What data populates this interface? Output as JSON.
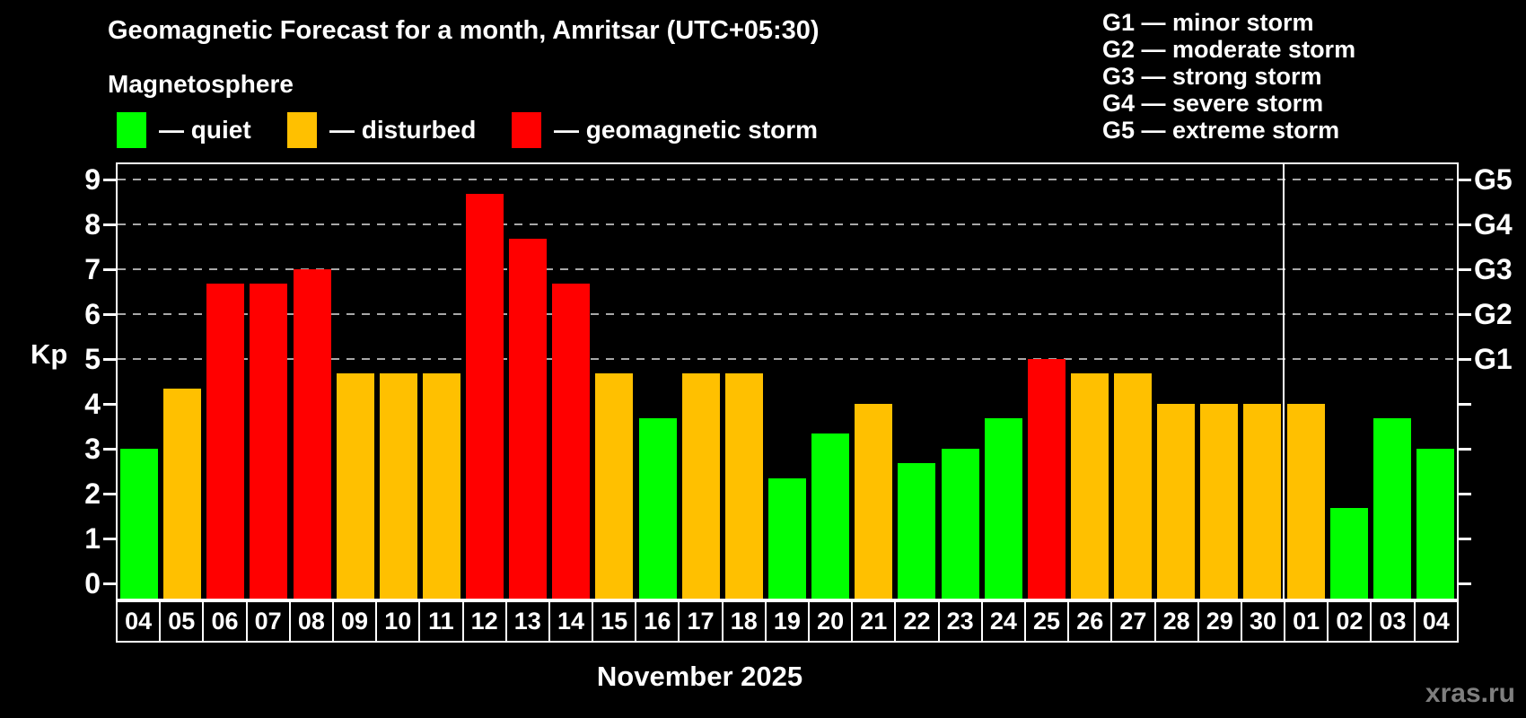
{
  "title": "Geomagnetic Forecast for a month, Amritsar (UTC+05:30)",
  "subtitle": "Magnetosphere",
  "legend": {
    "items": [
      {
        "key": "quiet",
        "label": "— quiet",
        "color": "#00ff00"
      },
      {
        "key": "disturbed",
        "label": "— disturbed",
        "color": "#ffc000"
      },
      {
        "key": "storm",
        "label": "— geomagnetic storm",
        "color": "#ff0000"
      }
    ]
  },
  "g_scale_legend": {
    "lines": [
      "G1 — minor storm",
      "G2 — moderate storm",
      "G3 — strong storm",
      "G4 — severe storm",
      "G5 — extreme storm"
    ]
  },
  "axes": {
    "y_label": "Kp",
    "y_ticks": [
      0,
      1,
      2,
      3,
      4,
      5,
      6,
      7,
      8,
      9
    ],
    "right_labels": [
      {
        "label": "G1",
        "kp": 5
      },
      {
        "label": "G2",
        "kp": 6
      },
      {
        "label": "G3",
        "kp": 7
      },
      {
        "label": "G4",
        "kp": 8
      },
      {
        "label": "G5",
        "kp": 9
      }
    ]
  },
  "x_caption": "November 2025",
  "watermark": "xras.ru",
  "chart_data": {
    "type": "bar",
    "title": "Geomagnetic Forecast for a month, Amritsar (UTC+05:30)",
    "xlabel": "November 2025",
    "ylabel": "Kp",
    "ylim": [
      0,
      9.4
    ],
    "grid": "dashed horizontal lines at Kp 5,6,7,8,9 only",
    "gridlines_at": [
      5,
      6,
      7,
      8,
      9
    ],
    "legend_position": "top-left",
    "categories": [
      "04",
      "05",
      "06",
      "07",
      "08",
      "09",
      "10",
      "11",
      "12",
      "13",
      "14",
      "15",
      "16",
      "17",
      "18",
      "19",
      "20",
      "21",
      "22",
      "23",
      "24",
      "25",
      "26",
      "27",
      "28",
      "29",
      "30",
      "01",
      "02",
      "03",
      "04"
    ],
    "values": [
      3,
      4.33,
      6.67,
      6.67,
      7,
      4.67,
      4.67,
      4.67,
      8.67,
      7.67,
      6.67,
      4.67,
      3.67,
      4.67,
      4.67,
      2.33,
      3.33,
      4,
      2.67,
      3,
      3.67,
      5,
      4.67,
      4.67,
      4,
      4,
      4,
      4,
      1.67,
      3.67,
      3
    ],
    "statuses": [
      "quiet",
      "disturbed",
      "storm",
      "storm",
      "storm",
      "disturbed",
      "disturbed",
      "disturbed",
      "storm",
      "storm",
      "storm",
      "disturbed",
      "quiet",
      "disturbed",
      "disturbed",
      "quiet",
      "quiet",
      "disturbed",
      "quiet",
      "quiet",
      "quiet",
      "storm",
      "disturbed",
      "disturbed",
      "disturbed",
      "disturbed",
      "disturbed",
      "disturbed",
      "quiet",
      "quiet",
      "quiet"
    ],
    "month_separator_after_index": 26,
    "colors": {
      "quiet": "#00ff00",
      "disturbed": "#ffc000",
      "storm": "#ff0000"
    }
  }
}
